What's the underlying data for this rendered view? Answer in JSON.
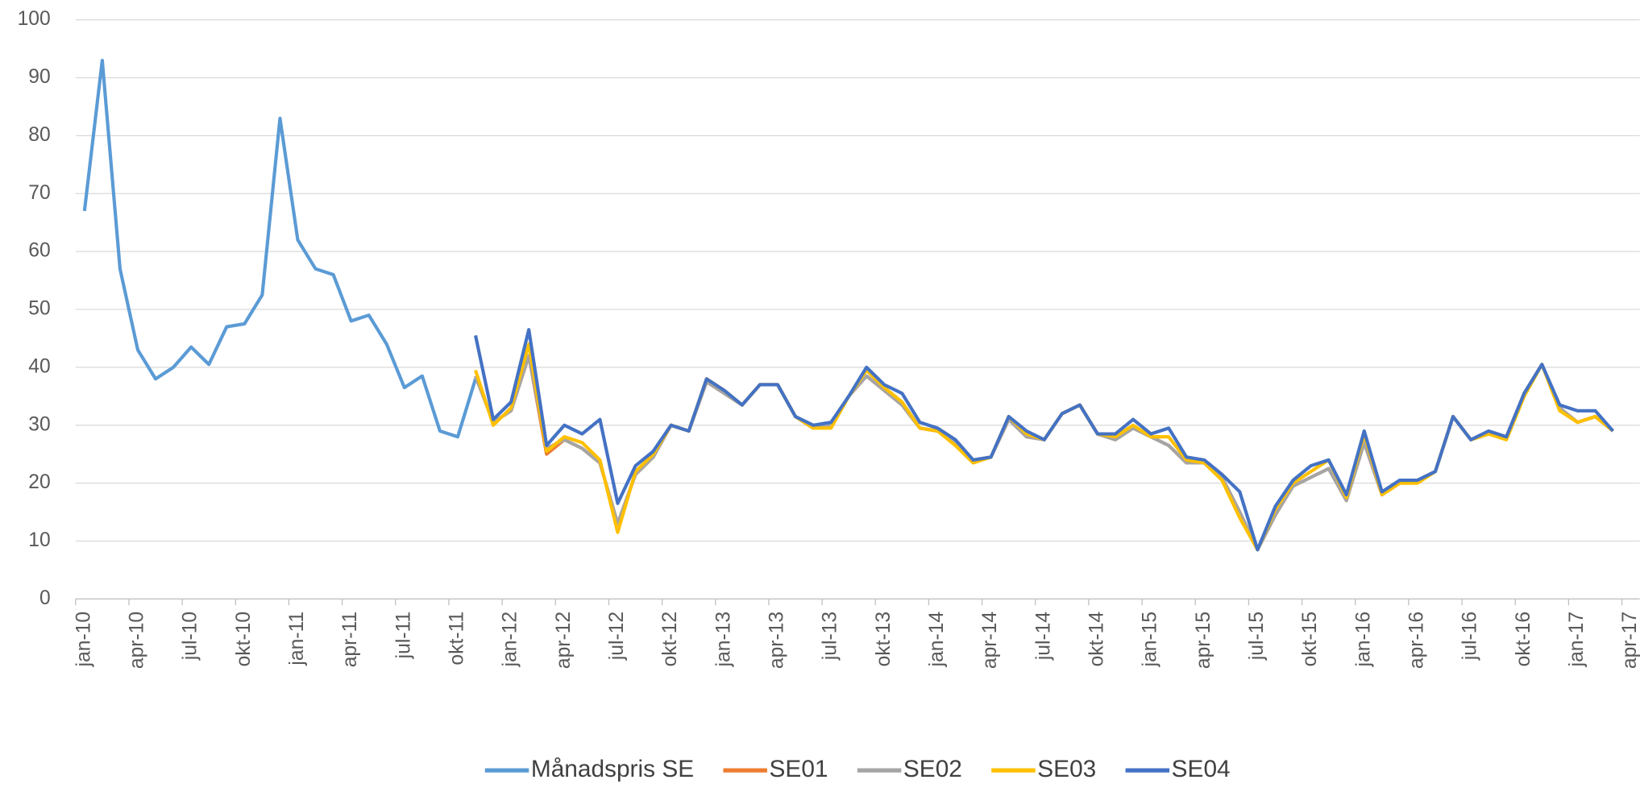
{
  "chart_data": {
    "type": "line",
    "categories": [
      "jan-10",
      null,
      null,
      "apr-10",
      null,
      null,
      "jul-10",
      null,
      null,
      "okt-10",
      null,
      null,
      "jan-11",
      null,
      null,
      "apr-11",
      null,
      null,
      "jul-11",
      null,
      null,
      "okt-11",
      null,
      null,
      "jan-12",
      null,
      null,
      "apr-12",
      null,
      null,
      "jul-12",
      null,
      null,
      "okt-12",
      null,
      null,
      "jan-13",
      null,
      null,
      "apr-13",
      null,
      null,
      "jul-13",
      null,
      null,
      "okt-13",
      null,
      null,
      "jan-14",
      null,
      null,
      "apr-14",
      null,
      null,
      "jul-14",
      null,
      null,
      "okt-14",
      null,
      null,
      "jan-15",
      null,
      null,
      "apr-15",
      null,
      null,
      "jul-15",
      null,
      null,
      "okt-15",
      null,
      null,
      "jan-16",
      null,
      null,
      "apr-16",
      null,
      null,
      "jul-16",
      null,
      null,
      "okt-16",
      null,
      null,
      "jan-17",
      null,
      null,
      "apr-17"
    ],
    "series": [
      {
        "name": "Månadspris SE",
        "color": "#5b9bd5",
        "values": [
          67,
          93,
          57,
          43,
          38,
          40,
          43.5,
          40.5,
          47,
          47.5,
          52.5,
          83,
          62,
          57,
          56,
          48,
          49,
          44,
          36.5,
          38.5,
          29,
          28,
          38,
          null,
          null,
          null,
          null,
          null,
          null,
          null,
          null,
          null,
          null,
          null,
          null,
          null,
          null,
          null,
          null,
          null,
          null,
          null,
          null,
          null,
          null,
          null,
          null,
          null,
          null,
          null,
          null,
          null,
          null,
          null,
          null,
          null,
          null,
          null,
          null,
          null,
          null,
          null,
          null,
          null,
          null,
          null,
          null,
          null,
          null,
          null,
          null,
          null,
          null,
          null,
          null,
          null,
          null,
          null,
          null,
          null,
          null,
          null,
          null,
          null,
          null,
          null,
          null,
          null
        ]
      },
      {
        "name": "SE01",
        "color": "#ed7d31",
        "values": [
          null,
          null,
          null,
          null,
          null,
          null,
          null,
          null,
          null,
          null,
          null,
          null,
          null,
          null,
          null,
          null,
          null,
          null,
          null,
          null,
          null,
          null,
          38.5,
          30.5,
          32.5,
          42,
          25,
          27.5,
          26,
          23.5,
          13,
          21.5,
          24.5,
          30,
          29,
          37.5,
          35.5,
          33.5,
          37,
          37,
          31.5,
          29.5,
          30,
          35,
          38.5,
          36,
          33.5,
          29.5,
          29,
          27,
          24,
          24.5,
          31,
          28,
          27.5,
          32,
          33.5,
          28.5,
          27.5,
          29.5,
          28,
          26.5,
          23.5,
          23.5,
          21,
          15,
          8.5,
          14.5,
          19.5,
          21,
          22.5,
          17,
          27,
          18,
          20,
          20.5,
          22,
          31.5,
          27.5,
          28.5,
          28,
          35.5,
          40.5,
          33,
          30.5,
          31.5,
          29,
          null
        ]
      },
      {
        "name": "SE02",
        "color": "#a5a5a5",
        "values": [
          null,
          null,
          null,
          null,
          null,
          null,
          null,
          null,
          null,
          null,
          null,
          null,
          null,
          null,
          null,
          null,
          null,
          null,
          null,
          null,
          null,
          null,
          38.5,
          30.5,
          32.5,
          42,
          26,
          27.5,
          26,
          23.5,
          13,
          21.5,
          24.5,
          30,
          29,
          37.5,
          35.5,
          33.5,
          37,
          37,
          31.5,
          29.5,
          30,
          35,
          38.5,
          36,
          33.5,
          29.5,
          29,
          27,
          24,
          24.5,
          31,
          28,
          27.5,
          32,
          33.5,
          28.5,
          27.5,
          29.5,
          28,
          26.5,
          23.5,
          23.5,
          21,
          15,
          8.5,
          14.5,
          19.5,
          21,
          22.5,
          17,
          27,
          18,
          20,
          20.5,
          22,
          31.5,
          27.5,
          28.5,
          28,
          35.5,
          40.5,
          33,
          30.5,
          31.5,
          29,
          null
        ]
      },
      {
        "name": "SE03",
        "color": "#ffc000",
        "values": [
          null,
          null,
          null,
          null,
          null,
          null,
          null,
          null,
          null,
          null,
          null,
          null,
          null,
          null,
          null,
          null,
          null,
          null,
          null,
          null,
          null,
          null,
          39.5,
          30,
          33,
          44,
          25.5,
          28,
          27,
          24,
          11.5,
          22,
          25,
          30,
          29,
          38,
          36,
          33.5,
          37,
          37,
          31.5,
          29.5,
          29.5,
          35,
          39.5,
          36.5,
          34,
          29.5,
          29,
          26.5,
          23.5,
          24.5,
          31.5,
          28.5,
          27.5,
          32,
          33.5,
          28.5,
          28,
          30,
          28,
          28,
          24,
          23.5,
          20.5,
          14,
          8.5,
          15.5,
          20,
          22,
          24,
          17.5,
          28.5,
          18,
          20,
          20,
          22,
          31.5,
          27.5,
          28.5,
          27.5,
          35,
          40.5,
          32.5,
          30.5,
          31.5,
          29,
          null
        ]
      },
      {
        "name": "SE04",
        "color": "#4472c4",
        "values": [
          null,
          null,
          null,
          null,
          null,
          null,
          null,
          null,
          null,
          null,
          null,
          null,
          null,
          null,
          null,
          null,
          null,
          null,
          null,
          null,
          null,
          null,
          45.5,
          31,
          34,
          46.5,
          26.5,
          30,
          28.5,
          31,
          16.5,
          23,
          25.5,
          30,
          29,
          38,
          36,
          33.5,
          37,
          37,
          31.5,
          30,
          30.5,
          35,
          40,
          37,
          35.5,
          30.5,
          29.5,
          27.5,
          24,
          24.5,
          31.5,
          29,
          27.5,
          32,
          33.5,
          28.5,
          28.5,
          31,
          28.5,
          29.5,
          24.5,
          24,
          21.5,
          18.5,
          8.5,
          16,
          20.5,
          23,
          24,
          18,
          29,
          18.5,
          20.5,
          20.5,
          22,
          31.5,
          27.5,
          29,
          28,
          35.5,
          40.5,
          33.5,
          32.5,
          32.5,
          29,
          null
        ]
      }
    ],
    "ylim": [
      0,
      100
    ],
    "yticks": [
      0,
      10,
      20,
      30,
      40,
      50,
      60,
      70,
      80,
      90,
      100
    ],
    "grid": true,
    "legend": "bottom"
  }
}
